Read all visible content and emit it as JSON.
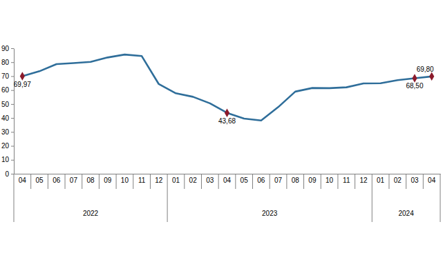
{
  "chart_data": {
    "type": "line",
    "categories": [
      "04",
      "05",
      "06",
      "07",
      "08",
      "09",
      "10",
      "11",
      "12",
      "01",
      "02",
      "03",
      "04",
      "05",
      "06",
      "07",
      "08",
      "09",
      "10",
      "11",
      "12",
      "01",
      "02",
      "03",
      "04"
    ],
    "groups": [
      {
        "label": "2022",
        "count": 9
      },
      {
        "label": "2023",
        "count": 12
      },
      {
        "label": "2024",
        "count": 4
      }
    ],
    "series": [
      {
        "color": "#2f6e9a",
        "marker": "diamond",
        "marker_color": "#8b1a2b",
        "values": [
          69.97,
          73.5,
          78.6,
          79.4,
          80.2,
          83.4,
          85.5,
          84.4,
          64.3,
          57.7,
          55.2,
          50.5,
          43.68,
          39.6,
          38.2,
          47.8,
          58.9,
          61.5,
          61.4,
          62.0,
          64.8,
          64.9,
          67.1,
          68.5,
          69.8
        ],
        "value_labels": [
          "69,97",
          null,
          null,
          null,
          null,
          null,
          null,
          null,
          null,
          null,
          null,
          null,
          "43,68",
          null,
          null,
          null,
          null,
          null,
          null,
          null,
          null,
          null,
          null,
          "68,50",
          "69,80"
        ]
      }
    ],
    "ylim": [
      0,
      90
    ],
    "yticks": [
      0,
      10,
      20,
      30,
      40,
      50,
      60,
      70,
      80,
      90
    ],
    "grid": false,
    "data_labels": true
  }
}
